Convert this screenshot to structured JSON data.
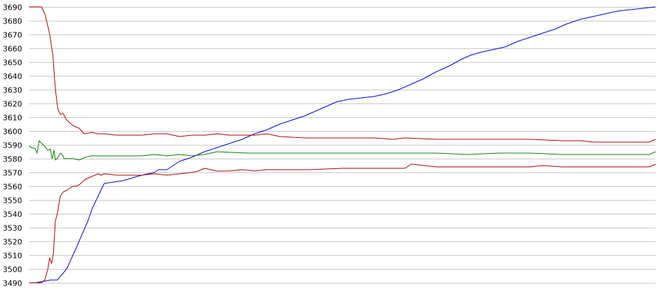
{
  "chart_data": {
    "type": "line",
    "title": "",
    "xlabel": "",
    "ylabel": "",
    "ylim": [
      3490,
      3690
    ],
    "yticks": [
      3490,
      3500,
      3510,
      3520,
      3530,
      3540,
      3550,
      3560,
      3570,
      3580,
      3590,
      3600,
      3610,
      3620,
      3630,
      3640,
      3650,
      3660,
      3670,
      3680,
      3690
    ],
    "xlim": [
      0,
      100
    ],
    "grid": true,
    "legend": "none",
    "series": [
      {
        "color": "#0000c8",
        "x": [
          0,
          1,
          2.3,
          3.4,
          4.5,
          6,
          7.5,
          9.4,
          10.1,
          12,
          15,
          17.2,
          18,
          20,
          20.7,
          22,
          24,
          26,
          28,
          30,
          32,
          34,
          36,
          38,
          40,
          42,
          44,
          45,
          47,
          49,
          51,
          53,
          55,
          57,
          59,
          61,
          63,
          65,
          67,
          69,
          70.5,
          72,
          74,
          76,
          78,
          80,
          82,
          84,
          86,
          88,
          90,
          92,
          94,
          96,
          98,
          100
        ],
        "values": [
          3490,
          3490,
          3491,
          3492,
          3492,
          3500,
          3515,
          3535,
          3544,
          3562,
          3564,
          3567,
          3568,
          3570,
          3572,
          3572,
          3578,
          3581,
          3585,
          3588,
          3591,
          3594,
          3598,
          3601,
          3605,
          3608,
          3611,
          3613,
          3617,
          3621,
          3623,
          3624,
          3625,
          3627,
          3630,
          3634,
          3638,
          3643,
          3647,
          3652,
          3655,
          3657,
          3659,
          3661,
          3665,
          3668,
          3671,
          3674,
          3678,
          3681,
          3683,
          3685,
          3687,
          3688,
          3689,
          3690
        ]
      },
      {
        "color": "#aa0000",
        "x": [
          0,
          2,
          2.5,
          3,
          3.3,
          3.8,
          4.2,
          4.6,
          5,
          5.4,
          6,
          7,
          8,
          8.8,
          10,
          11,
          12,
          14,
          16,
          18,
          20,
          22,
          24,
          26,
          28,
          30,
          32,
          34,
          36,
          38,
          40,
          44,
          50,
          55,
          58,
          60,
          65,
          70,
          75,
          80,
          85,
          88,
          90,
          95,
          98,
          99,
          100
        ],
        "values": [
          3690,
          3690,
          3685,
          3676,
          3670,
          3655,
          3630,
          3616,
          3612,
          3613,
          3608,
          3604,
          3602,
          3598,
          3599,
          3598,
          3598,
          3597,
          3597,
          3597,
          3598,
          3598,
          3596,
          3597,
          3597,
          3598,
          3597,
          3597,
          3597,
          3598,
          3596,
          3595,
          3595,
          3595,
          3594,
          3595,
          3594,
          3594,
          3594,
          3594,
          3593,
          3593,
          3592,
          3592,
          3592,
          3592,
          3594
        ]
      },
      {
        "color": "#aa0000",
        "x": [
          0,
          2,
          2.5,
          3,
          3.3,
          3.6,
          3.9,
          4.2,
          4.5,
          5,
          5.5,
          6,
          7,
          7.5,
          8,
          9,
          10,
          11,
          11.5,
          12,
          14,
          16,
          18,
          20,
          22,
          24,
          26,
          27,
          28,
          30,
          32,
          34,
          36,
          38,
          40,
          45,
          50,
          55,
          60,
          61,
          65,
          70,
          75,
          80,
          82,
          85,
          90,
          95,
          98,
          99,
          100
        ],
        "values": [
          3490,
          3490,
          3492,
          3500,
          3508,
          3504,
          3512,
          3535,
          3540,
          3553,
          3556,
          3557,
          3560,
          3560,
          3561,
          3565,
          3567,
          3569,
          3568,
          3569,
          3568,
          3568,
          3568,
          3569,
          3568,
          3569,
          3570,
          3571,
          3573,
          3571,
          3571,
          3572,
          3571,
          3572,
          3572,
          3572,
          3573,
          3573,
          3573,
          3576,
          3574,
          3574,
          3574,
          3574,
          3575,
          3574,
          3574,
          3574,
          3574,
          3574,
          3576
        ]
      },
      {
        "color": "#008000",
        "x": [
          0,
          1,
          1.3,
          1.6,
          2,
          2.5,
          3,
          3.4,
          3.7,
          4,
          4.2,
          4.5,
          5,
          5.3,
          5.6,
          6,
          7,
          8,
          9,
          10,
          11,
          12,
          14,
          16,
          18,
          20,
          22,
          24,
          26,
          28,
          30,
          35,
          40,
          45,
          50,
          55,
          60,
          65,
          70,
          75,
          80,
          85,
          90,
          95,
          98,
          99,
          100
        ],
        "values": [
          3589,
          3587,
          3584,
          3593,
          3591,
          3589,
          3586,
          3587,
          3580,
          3586,
          3579,
          3580,
          3584,
          3583,
          3580,
          3580,
          3580,
          3579,
          3581,
          3582,
          3582,
          3582,
          3582,
          3582,
          3582,
          3583,
          3582,
          3583,
          3582,
          3583,
          3585,
          3584,
          3584,
          3584,
          3584,
          3584,
          3584,
          3584,
          3583,
          3584,
          3584,
          3583,
          3583,
          3583,
          3583,
          3583,
          3585
        ]
      }
    ]
  }
}
